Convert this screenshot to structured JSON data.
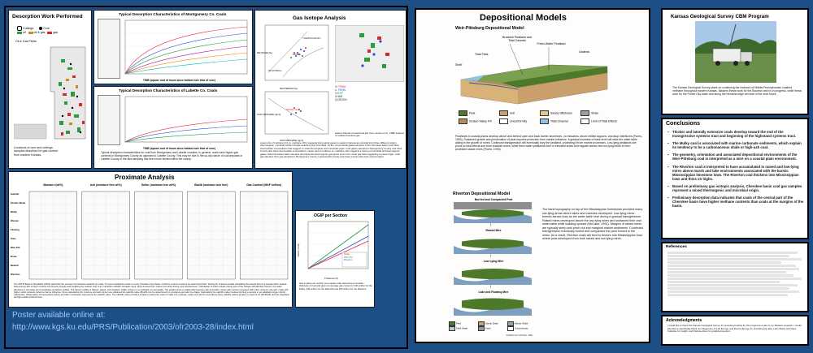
{
  "desorption": {
    "title": "Desorption Work Performed",
    "legend": [
      "Cuttings",
      "Core",
      "oil",
      "oil & gas",
      "gas"
    ],
    "map_label": "Oil & Gas Fields",
    "caption": "Locations of core and cuttings samples desorbed for gas content from eastern Kansas."
  },
  "montgomery": {
    "title": "Typical Desorption Characteristics of Montgomery Co. Coals",
    "xlabel": "TIME (square root of hours since bottom hole time of core)"
  },
  "labette": {
    "title": "Typical Desorption Characteristics of Labette Co. Coals",
    "xlabel": "TIME (square root of hours since bottom hole time of core)",
    "caption": "Typical desorption characteristics for coal from Montgomery and Labette counties. In general, coals have higher gas contents in Montgomery County as opposed to Labette County. This may be due to the up-dip nature of coal deposits in Labette County or the fact sampling has been more limited within the county."
  },
  "isotope": {
    "title": "Gas Isotope Analysis",
    "labels": [
      "THERMOGENIC",
      "MIXED",
      "MICROBIAL",
      "CO2 REDUCTION",
      "FERMENTATION",
      "MIXED GAS"
    ],
    "axis_y1": "METHANE (‰)",
    "axis_x1": "DEUTERIUM (‰)",
    "axis_y2": "δ13C METHANE (ppm)",
    "axis_x2": "δ13C METHANE (ppm)",
    "legend": [
      "W. PENN",
      "U. PENN",
      "MISSP",
      "CHAR",
      "Q DEVON"
    ],
    "caption_right": "eastern Kansas conventional gas (from Jenden et al., 1988) analysis of coalbed desorbed gas",
    "caption": "Lower plot of methane (C1 vs. methane 13C) suggests that natural gases in eastern Kansas are derived from three different origins (thermogenic, microbial carbon dioxide reduction and microbial). Of the conventional gases samples in the Cherokee basin most have intermediate compositions that suggest a mixed thermogenic and microbial origin. Coal gases sampled in Montgomery County and Cass County also have intermediate compositions. Upper plot of methane vs. methane 13C suggests a mixing of microbial and thermogenic gases. Most Cherokee basin samples plot below the thermogenic gas arrow and in the mixed gas field suggesting a mixed origin. Coal gas samples from gas sampled in Montgomery County, Leavenworth County and Cass County also have mixed origins."
  },
  "proximate": {
    "title": "Proximate Analysis",
    "columns": [
      "Moisture (wt%)",
      "Ash (moisture free wt%)",
      "Sulfur (moisture free wt%)",
      "Btu/lb (moisture ash free)",
      "Gas Content (MAF scf/ton)"
    ],
    "rows": [
      "Summit",
      "Excello Shale",
      "Mulky",
      "Weston",
      "Fleming",
      "Tebo",
      "Weir-Pitt",
      "Rowe",
      "Neutral",
      "Riverton"
    ],
    "caption": "The ASTM Book of Standards (2002) describes the process of proximate analysis on coals. To report analytical results on a dry (moisture free) basis, moisture content needs to be determined first. Testing for moisture entails calculating the weight loss of a sample when heated. Determining ash content involves burning the sample and weighing the residue. Ash is an important indicator of clastic input, likely derived from marine incursion during peat development. Calculation of sulfur entails mixing part of the sample with Eschka mixture; the sulfur dissolves in hot water and precipitates as barium sulfate. The barium sulfate is filtered, ashed, and weighed. Sulfur content is an indicator of coal quality. The graphs show a relationship between ash and sulfur, where ash content increases with sulfur content. Like ash, coals with higher sulfur contents reflect a marine influence. Once calculations for moisture and ash content are obtained the calorific value (Btu/lb) can be determined on a moisture and ash free basis. Calculating the calorific value involves burning a sample in an adiabatic oxygen bomb calorimeter. Observation of temperature before and after combustion represents the calorific value. The calorific value provides a basis to determine rank of coals. For example, coals such as the ones above have calorific values greater or equal to 14,000 Btu/lb and are classified as high-volatile A bituminous.",
    "poster_label": "Poster available online at:",
    "poster_url": "http://www.kgs.ku.edu/PRS/Publication/2003/ofr2003-28/index.html"
  },
  "ogip": {
    "title": "OGIP per Section",
    "ylabel": "OGIP (mmcf)",
    "xlabel": "Thickness (ft)",
    "caption": "Gas in place per section (one square mile) assuming a constant thickness of coal and given an average gas content of 130 scf/ton for the Mulky, 206 scf/ton for the Weir-Pitt and 150 scf/ton for the Riverton."
  },
  "depositional": {
    "title": "Depositional Models",
    "weir_title": "Weir-Pittsburg Depositional Model",
    "weir_labels": [
      "Brackish Peatland and Tidal Cannels",
      "Fresh-Water Peatland",
      "Tidal Flats",
      "Uplands",
      "Shelf"
    ],
    "legend": [
      "Peat",
      "Soil",
      "Sandy Siltstones",
      "Shale",
      "Incised Valley Fill",
      "Unconformity",
      "Tidal Channel",
      "Limit of Tidal Effects"
    ],
    "weir_caption": "Peatlands in coastal plains develop above and behind open and back barrier shorelines, on estuaries, above infilled lagoons, and atop interfluves (Flores, 1993). Sustained growth and preservation of peat requires protection from marine influence. A gradual increase of base level will raise the water table aiding in the growth of mires. Continued transgression will eventually bury the peatland, protecting it from marine processes. Low-lying peatlands are prone to tidal effects and form brackish mires, while fresh water peatlands form in elevated areas and migrate across the low-lying mires to form protected raised mires (Flores, 1993).",
    "riverton_title": "Riverton Depositional Model",
    "riverton_stages": [
      "Burried and Compacted Peat",
      "Raised Mire",
      "Low Lying Mire",
      "Lake and Floating Mire"
    ],
    "riverton_caption": "The karst topography on top of the Mississippian limestones provided many low-lying areas where lakes and marshes developed. Low-lying mires formed across lows as the water table rose during a gradual transgression. Raised mires developed above the low-lying mires and sustained their own water table while building upward (McCabe, 1991). Margins of raised mires are typically steep and pinch out into marginal marine sediments. Continued transgression eventually buried and compacted the peat formed in the mires. As a result, Riverton coals will tend to thicken into Mississippian lows where peat developed from both raised and low-lying mires.",
    "riverton_legend": [
      "Peat",
      "Sandy Shale",
      "Marine Shale",
      "Shell Shale",
      "Karst",
      "Unconformity"
    ],
    "riverton_credit": "modified from McCabe, 1991"
  },
  "kgs": {
    "title": "Kansas Geological Survey CBM Program",
    "caption": "The Kansas Geological Survey plans on continuing the research of Middle Pennsylvanian coalbed methane throughout eastern Kansas. Masters thesis work for the Bourbon arch is in progress, while thesis work for the Forest City basin and along the Nemaha ridge will start in the near future."
  },
  "conclusions": {
    "title": "Conclusions",
    "items": [
      "Thicker and laterally extensive coals develop toward the end of the transgressive systems tract and beginning of the highstand systems tract.",
      "The Mulky coal is associated with marine carbonate sediments, which explain its tendency to be a carbonaceous shale or high-ash coal.",
      "The geometry, orientation and associated depositional environments of the Weir-Pittsburg coal is interpreted as a mire on a coastal plain environment.",
      "The Riverton coal is interpreted to have accumulated in raised and low-lying mires above marsh and lake environments associated with the karstic Mississippian limestone lows. The Riverton coal thickens into Mississippian lows and thins on highs.",
      "Based on preliminary gas isotopic analysis, Cherokee basin coal gas samples represent a mixed thermogenic and microbial origin.",
      "Preliminary desorption data indicates that coals of the central part of the Cherokee basin have higher methane contents than coals at the margins of the basin."
    ]
  },
  "references": {
    "title": "References"
  },
  "ack": {
    "title": "Acknowledgments",
    "text": "I would like to thank the Kansas Geological Survey for providing funding for this project as a part of my Masters research. I would also like to specifically thank Jon Stegemen of Colt Energy, and Dennis Energy for providing log data, Larry Brady and Dave Kurlanke for insight, and Patricia Acker for graphical support."
  }
}
